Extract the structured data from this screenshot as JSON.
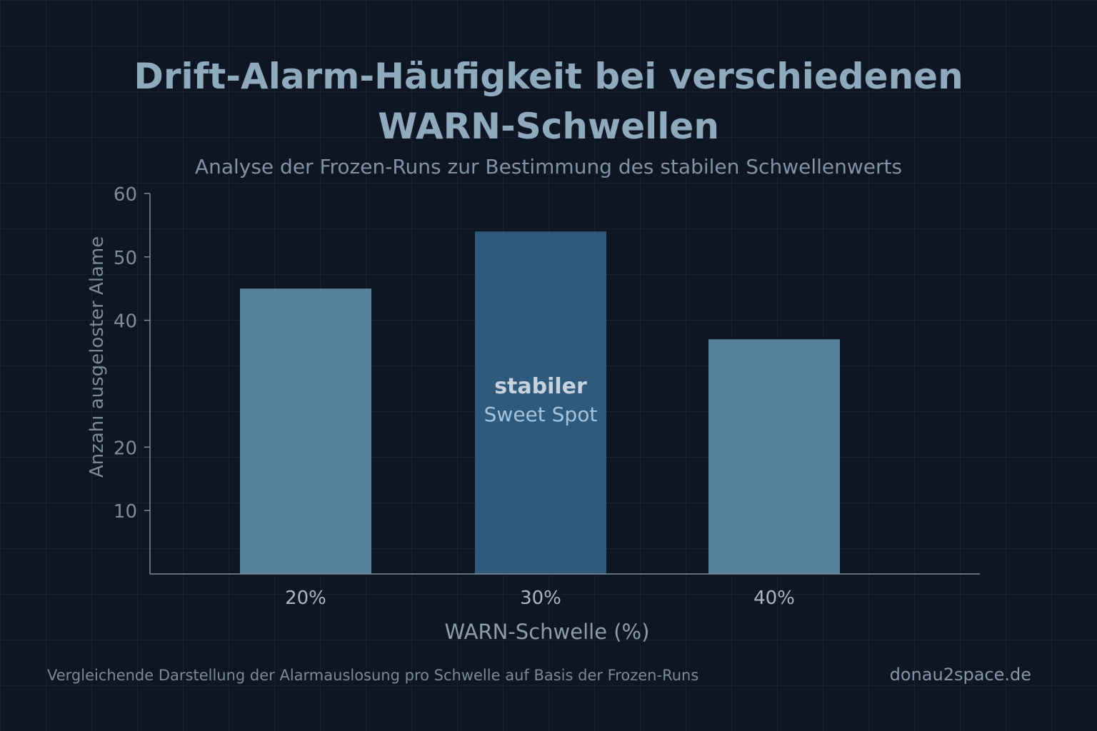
{
  "colors": {
    "background": "#0f1623",
    "bar": "#567f9c",
    "bar_highlight": "#305a7c",
    "title": "#8fa9bd",
    "axis": "#7e8d9c",
    "annotation_bold": "#c6d3de",
    "annotation_light": "#a3c4de"
  },
  "footer": {
    "note": "Vergleichende Darstellung der Alarmauslosung pro Schwelle auf Basis der Frozen-Runs",
    "brand": "donau2space.de"
  },
  "chart_data": {
    "type": "bar",
    "title": "Drift-Alarm-Häufigkeit bei verschiedenen WARN-Schwellen",
    "subtitle": "Analyse der Frozen-Runs zur Bestimmung des stabilen Schwellenwerts",
    "xlabel": "WARN-Schwelle (%)",
    "ylabel": "Anzahı ausgeloster Alame",
    "categories": [
      "20%",
      "30%",
      "40%"
    ],
    "values": [
      45,
      54,
      37
    ],
    "highlight_index": 1,
    "ylim": [
      0,
      60
    ],
    "yticks": [
      10,
      20,
      40,
      50,
      60
    ],
    "grid": true,
    "annotation": {
      "category": "30%",
      "line1": "stabiler",
      "line2": "Sweet Spot"
    }
  }
}
